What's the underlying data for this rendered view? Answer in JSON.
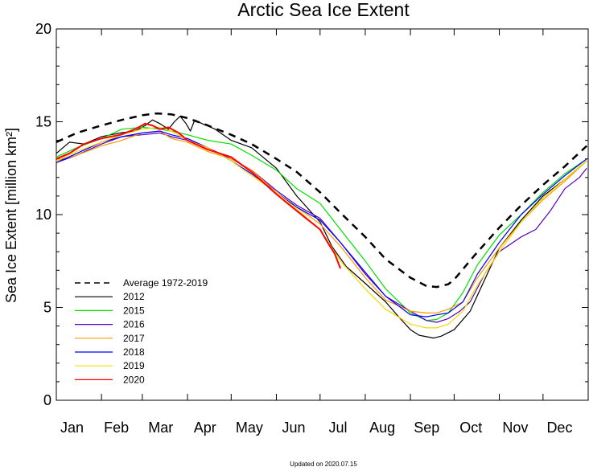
{
  "chart_data": {
    "type": "line",
    "title": "Arctic Sea Ice Extent",
    "ylabel": "Sea Ice Extent [million km²]",
    "xlabel": "",
    "ylim": [
      0,
      20
    ],
    "yticks": [
      0,
      5,
      10,
      15,
      20
    ],
    "months": [
      "Jan",
      "Feb",
      "Mar",
      "Apr",
      "May",
      "Jun",
      "Jul",
      "Aug",
      "Sep",
      "Oct",
      "Nov",
      "Dec"
    ],
    "grid": false,
    "legend_position": "lower-left",
    "footer": "Updated on 2020.07.15",
    "series": [
      {
        "name": "Average 1972-2019",
        "color": "#000000",
        "dashed": true,
        "points": [
          [
            1,
            13.9
          ],
          [
            15,
            14.4
          ],
          [
            32,
            14.8
          ],
          [
            46,
            15.1
          ],
          [
            60,
            15.35
          ],
          [
            70,
            15.45
          ],
          [
            80,
            15.4
          ],
          [
            91,
            15.2
          ],
          [
            105,
            14.8
          ],
          [
            121,
            14.3
          ],
          [
            135,
            13.8
          ],
          [
            152,
            13.0
          ],
          [
            166,
            12.3
          ],
          [
            182,
            11.2
          ],
          [
            196,
            10.1
          ],
          [
            213,
            8.8
          ],
          [
            227,
            7.6
          ],
          [
            244,
            6.6
          ],
          [
            255,
            6.15
          ],
          [
            262,
            6.1
          ],
          [
            270,
            6.25
          ],
          [
            274,
            6.5
          ],
          [
            288,
            7.8
          ],
          [
            305,
            9.3
          ],
          [
            320,
            10.5
          ],
          [
            335,
            11.6
          ],
          [
            350,
            12.6
          ],
          [
            365,
            13.7
          ]
        ]
      },
      {
        "name": "2012",
        "color": "#000000",
        "dashed": false,
        "points": [
          [
            1,
            13.3
          ],
          [
            10,
            13.9
          ],
          [
            20,
            13.8
          ],
          [
            32,
            14.2
          ],
          [
            45,
            14.4
          ],
          [
            55,
            14.5
          ],
          [
            62,
            14.8
          ],
          [
            67,
            15.1
          ],
          [
            72,
            14.9
          ],
          [
            78,
            14.6
          ],
          [
            82,
            15.0
          ],
          [
            86,
            15.3
          ],
          [
            90,
            14.9
          ],
          [
            93,
            14.5
          ],
          [
            96,
            15.1
          ],
          [
            101,
            14.9
          ],
          [
            110,
            14.6
          ],
          [
            121,
            14.0
          ],
          [
            135,
            13.6
          ],
          [
            152,
            12.5
          ],
          [
            166,
            11.0
          ],
          [
            182,
            9.6
          ],
          [
            190,
            8.3
          ],
          [
            200,
            7.2
          ],
          [
            213,
            6.3
          ],
          [
            227,
            5.3
          ],
          [
            237,
            4.4
          ],
          [
            244,
            3.8
          ],
          [
            250,
            3.5
          ],
          [
            260,
            3.35
          ],
          [
            265,
            3.45
          ],
          [
            274,
            3.8
          ],
          [
            285,
            4.8
          ],
          [
            295,
            6.5
          ],
          [
            305,
            8.2
          ],
          [
            320,
            9.7
          ],
          [
            335,
            11.0
          ],
          [
            350,
            11.9
          ],
          [
            365,
            12.9
          ]
        ]
      },
      {
        "name": "2015",
        "color": "#00e000",
        "dashed": false,
        "points": [
          [
            1,
            13.1
          ],
          [
            15,
            13.6
          ],
          [
            32,
            14.1
          ],
          [
            46,
            14.6
          ],
          [
            60,
            14.7
          ],
          [
            72,
            14.6
          ],
          [
            80,
            14.5
          ],
          [
            91,
            14.3
          ],
          [
            105,
            14.0
          ],
          [
            121,
            13.8
          ],
          [
            135,
            13.2
          ],
          [
            152,
            12.4
          ],
          [
            166,
            11.4
          ],
          [
            182,
            10.6
          ],
          [
            196,
            9.2
          ],
          [
            213,
            7.5
          ],
          [
            227,
            6.0
          ],
          [
            244,
            4.7
          ],
          [
            255,
            4.3
          ],
          [
            262,
            4.35
          ],
          [
            270,
            4.7
          ],
          [
            280,
            5.8
          ],
          [
            290,
            7.3
          ],
          [
            305,
            8.9
          ],
          [
            320,
            10.0
          ],
          [
            335,
            11.2
          ],
          [
            350,
            12.2
          ],
          [
            365,
            13.0
          ]
        ]
      },
      {
        "name": "2016",
        "color": "#5500c0",
        "dashed": false,
        "points": [
          [
            1,
            12.8
          ],
          [
            15,
            13.2
          ],
          [
            32,
            13.8
          ],
          [
            46,
            14.2
          ],
          [
            60,
            14.3
          ],
          [
            72,
            14.4
          ],
          [
            80,
            14.2
          ],
          [
            91,
            14.0
          ],
          [
            105,
            13.6
          ],
          [
            121,
            13.0
          ],
          [
            135,
            12.4
          ],
          [
            152,
            11.3
          ],
          [
            166,
            10.5
          ],
          [
            182,
            9.8
          ],
          [
            196,
            8.5
          ],
          [
            213,
            6.8
          ],
          [
            227,
            5.6
          ],
          [
            244,
            4.8
          ],
          [
            255,
            4.3
          ],
          [
            262,
            4.2
          ],
          [
            270,
            4.4
          ],
          [
            278,
            4.8
          ],
          [
            285,
            5.3
          ],
          [
            295,
            6.8
          ],
          [
            305,
            8.0
          ],
          [
            320,
            8.8
          ],
          [
            330,
            9.2
          ],
          [
            340,
            10.2
          ],
          [
            350,
            11.4
          ],
          [
            360,
            12.0
          ],
          [
            365,
            12.5
          ]
        ]
      },
      {
        "name": "2017",
        "color": "#ff9900",
        "dashed": false,
        "points": [
          [
            1,
            12.9
          ],
          [
            15,
            13.2
          ],
          [
            32,
            13.7
          ],
          [
            46,
            14.0
          ],
          [
            60,
            14.4
          ],
          [
            72,
            14.5
          ],
          [
            80,
            14.1
          ],
          [
            91,
            13.9
          ],
          [
            105,
            13.4
          ],
          [
            121,
            13.0
          ],
          [
            135,
            12.4
          ],
          [
            152,
            11.2
          ],
          [
            166,
            10.4
          ],
          [
            182,
            9.5
          ],
          [
            196,
            8.3
          ],
          [
            213,
            6.6
          ],
          [
            227,
            5.4
          ],
          [
            244,
            4.8
          ],
          [
            255,
            4.7
          ],
          [
            262,
            4.7
          ],
          [
            270,
            4.9
          ],
          [
            280,
            5.3
          ],
          [
            290,
            6.6
          ],
          [
            305,
            8.2
          ],
          [
            320,
            9.6
          ],
          [
            335,
            10.8
          ],
          [
            350,
            11.8
          ],
          [
            365,
            12.9
          ]
        ]
      },
      {
        "name": "2018",
        "color": "#0000ff",
        "dashed": false,
        "points": [
          [
            1,
            12.8
          ],
          [
            15,
            13.3
          ],
          [
            32,
            13.9
          ],
          [
            46,
            14.2
          ],
          [
            60,
            14.4
          ],
          [
            72,
            14.5
          ],
          [
            80,
            14.3
          ],
          [
            91,
            14.1
          ],
          [
            105,
            13.6
          ],
          [
            121,
            12.9
          ],
          [
            135,
            12.2
          ],
          [
            152,
            11.2
          ],
          [
            166,
            10.4
          ],
          [
            182,
            9.7
          ],
          [
            196,
            8.5
          ],
          [
            213,
            6.9
          ],
          [
            227,
            5.6
          ],
          [
            244,
            4.6
          ],
          [
            255,
            4.5
          ],
          [
            262,
            4.6
          ],
          [
            270,
            4.7
          ],
          [
            280,
            5.3
          ],
          [
            290,
            6.8
          ],
          [
            305,
            8.5
          ],
          [
            320,
            10.0
          ],
          [
            335,
            11.1
          ],
          [
            350,
            12.1
          ],
          [
            365,
            13.0
          ]
        ]
      },
      {
        "name": "2019",
        "color": "#f5d800",
        "dashed": false,
        "points": [
          [
            1,
            12.9
          ],
          [
            15,
            13.4
          ],
          [
            32,
            13.9
          ],
          [
            46,
            14.3
          ],
          [
            60,
            14.6
          ],
          [
            72,
            14.7
          ],
          [
            80,
            14.5
          ],
          [
            91,
            14.0
          ],
          [
            105,
            13.6
          ],
          [
            121,
            12.9
          ],
          [
            135,
            12.1
          ],
          [
            152,
            11.2
          ],
          [
            166,
            10.3
          ],
          [
            182,
            9.2
          ],
          [
            196,
            7.5
          ],
          [
            213,
            6.0
          ],
          [
            227,
            4.9
          ],
          [
            244,
            4.1
          ],
          [
            255,
            3.9
          ],
          [
            262,
            3.9
          ],
          [
            270,
            4.1
          ],
          [
            280,
            4.8
          ],
          [
            290,
            6.2
          ],
          [
            305,
            8.0
          ],
          [
            320,
            9.6
          ],
          [
            335,
            10.9
          ],
          [
            350,
            11.9
          ],
          [
            365,
            12.9
          ]
        ]
      },
      {
        "name": "2020",
        "color": "#ff0000",
        "dashed": false,
        "points": [
          [
            1,
            13.0
          ],
          [
            10,
            13.3
          ],
          [
            20,
            13.8
          ],
          [
            32,
            14.1
          ],
          [
            45,
            14.3
          ],
          [
            55,
            14.6
          ],
          [
            62,
            14.9
          ],
          [
            67,
            14.8
          ],
          [
            72,
            14.6
          ],
          [
            78,
            14.7
          ],
          [
            85,
            14.4
          ],
          [
            91,
            14.0
          ],
          [
            105,
            13.5
          ],
          [
            121,
            13.1
          ],
          [
            135,
            12.3
          ],
          [
            152,
            11.1
          ],
          [
            166,
            10.2
          ],
          [
            182,
            9.2
          ],
          [
            188,
            8.4
          ],
          [
            192,
            7.9
          ],
          [
            196,
            7.1
          ]
        ]
      }
    ]
  }
}
